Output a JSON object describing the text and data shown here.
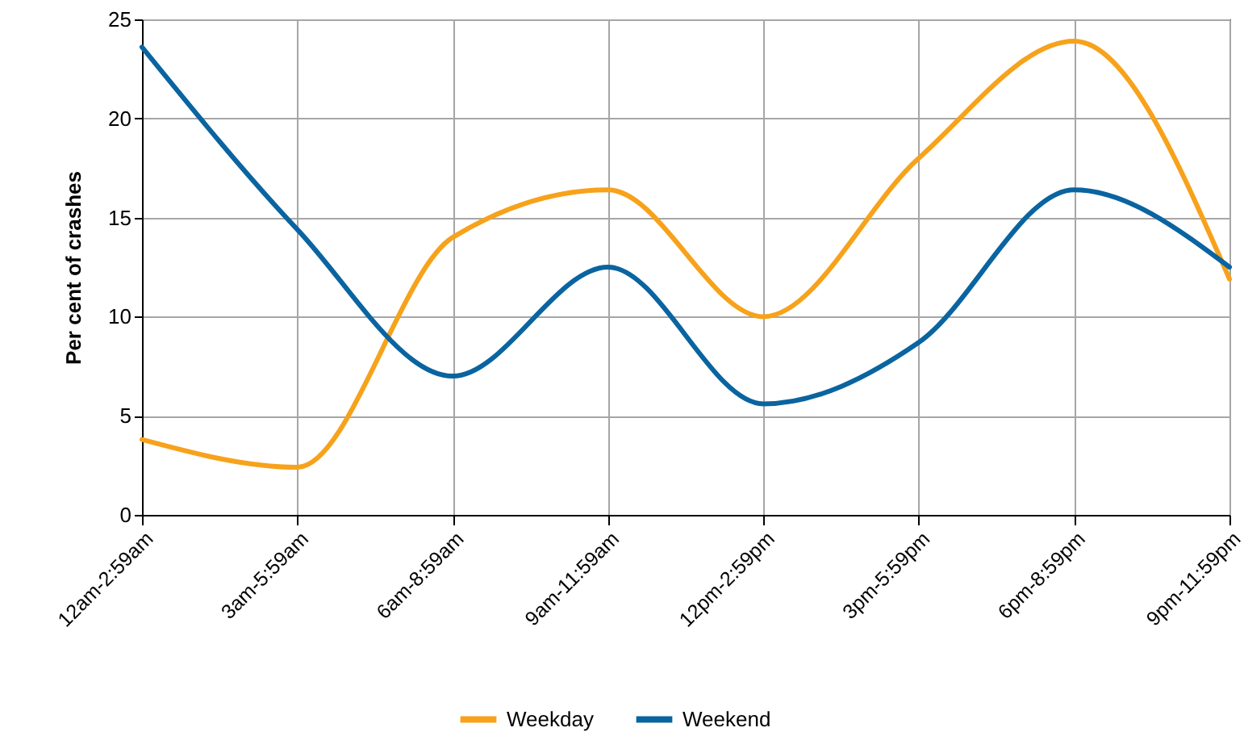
{
  "chart_data": {
    "type": "line",
    "ylabel": "Per cent of crashes",
    "categories": [
      "12am-2:59am",
      "3am-5:59am",
      "6am-8:59am",
      "9am-11:59am",
      "12pm-2:59pm",
      "3pm-5:59pm",
      "6pm-8:59pm",
      "9pm-11:59pm"
    ],
    "series": [
      {
        "name": "Weekday",
        "color": "#f7a21b",
        "values": [
          3.8,
          2.4,
          14.0,
          16.4,
          10.0,
          18.0,
          23.9,
          11.9
        ]
      },
      {
        "name": "Weekend",
        "color": "#0a64a0",
        "values": [
          23.6,
          14.4,
          7.0,
          12.5,
          5.6,
          8.7,
          16.4,
          12.5
        ]
      }
    ],
    "ylim": [
      0,
      25
    ],
    "yticks": [
      0,
      5,
      10,
      15,
      20,
      25
    ],
    "grid": true,
    "legend": "bottom",
    "marker": "none",
    "line_style": "solid"
  }
}
